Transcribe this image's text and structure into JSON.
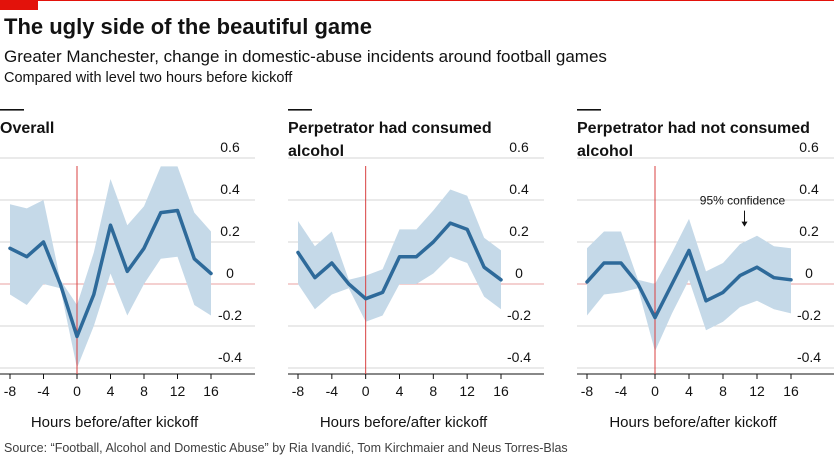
{
  "header": {
    "title": "The ugly side of the beautiful game",
    "subtitle": "Greater Manchester, change in domestic-abuse incidents around football games",
    "note": "Compared with level two hours before kickoff"
  },
  "source": "Source: “Football, Alcohol and Domestic Abuse” by Ria Ivandić, Tom Kirchmaier and Neus Torres-Blas",
  "colors": {
    "line": "#2e6a9a",
    "band": "#c5d9e8",
    "kickoff": "#d94040",
    "zero": "#e8a0a0",
    "grid": "#d6d6d6",
    "accent": "#e3120b"
  },
  "chart_data": [
    {
      "type": "line",
      "title_lines": [
        "Overall"
      ],
      "xlabel": "Hours before/after kickoff",
      "ylabel": "",
      "x": [
        -8,
        -6,
        -4,
        -2,
        0,
        2,
        4,
        6,
        8,
        10,
        12,
        14,
        16
      ],
      "xticks": [
        -8,
        -4,
        0,
        4,
        8,
        12,
        16
      ],
      "yticks": [
        -0.4,
        -0.2,
        0,
        0.2,
        0.4,
        0.6
      ],
      "ytick_labels": [
        "-0.4",
        "-0.2",
        "0",
        "0.2",
        "0.4",
        "0.6"
      ],
      "ylim": [
        -0.4,
        0.6
      ],
      "xlim": [
        -8,
        16
      ],
      "kickoff_x": 0,
      "series": [
        {
          "values": [
            0.17,
            0.13,
            0.2,
            0.0,
            -0.25,
            -0.05,
            0.28,
            0.06,
            0.17,
            0.34,
            0.35,
            0.12,
            0.05
          ],
          "lower": [
            -0.05,
            -0.1,
            0.0,
            -0.02,
            -0.4,
            -0.2,
            0.05,
            -0.15,
            0.0,
            0.12,
            0.13,
            -0.1,
            -0.15
          ],
          "upper": [
            0.38,
            0.36,
            0.4,
            0.02,
            -0.1,
            0.15,
            0.5,
            0.28,
            0.37,
            0.56,
            0.56,
            0.34,
            0.25
          ]
        }
      ]
    },
    {
      "type": "line",
      "title_lines": [
        "Perpetrator had consumed",
        "alcohol"
      ],
      "xlabel": "Hours before/after kickoff",
      "ylabel": "",
      "x": [
        -8,
        -6,
        -4,
        -2,
        0,
        2,
        4,
        6,
        8,
        10,
        12,
        14,
        16
      ],
      "xticks": [
        -8,
        -4,
        0,
        4,
        8,
        12,
        16
      ],
      "yticks": [
        -0.4,
        -0.2,
        0,
        0.2,
        0.4,
        0.6
      ],
      "ytick_labels": [
        "-0.4",
        "-0.2",
        "0",
        "0.2",
        "0.4",
        "0.6"
      ],
      "ylim": [
        -0.4,
        0.6
      ],
      "xlim": [
        -8,
        16
      ],
      "kickoff_x": 0,
      "series": [
        {
          "values": [
            0.15,
            0.03,
            0.1,
            0.0,
            -0.07,
            -0.04,
            0.13,
            0.13,
            0.2,
            0.29,
            0.26,
            0.08,
            0.02
          ],
          "lower": [
            0.0,
            -0.12,
            -0.05,
            -0.02,
            -0.18,
            -0.15,
            0.0,
            0.0,
            0.05,
            0.13,
            0.1,
            -0.06,
            -0.12
          ],
          "upper": [
            0.3,
            0.18,
            0.25,
            0.02,
            0.04,
            0.07,
            0.26,
            0.26,
            0.35,
            0.45,
            0.42,
            0.22,
            0.16
          ]
        }
      ]
    },
    {
      "type": "line",
      "title_lines": [
        "Perpetrator had not consumed",
        "alcohol"
      ],
      "xlabel": "Hours before/after kickoff",
      "ylabel": "",
      "x": [
        -8,
        -6,
        -4,
        -2,
        0,
        2,
        4,
        6,
        8,
        10,
        12,
        14,
        16
      ],
      "xticks": [
        -8,
        -4,
        0,
        4,
        8,
        12,
        16
      ],
      "yticks": [
        -0.4,
        -0.2,
        0,
        0.2,
        0.4,
        0.6
      ],
      "ytick_labels": [
        "-0.4",
        "-0.2",
        "0",
        "0.2",
        "0.4",
        "0.6"
      ],
      "ylim": [
        -0.4,
        0.6
      ],
      "xlim": [
        -8,
        16
      ],
      "kickoff_x": 0,
      "annotation": {
        "text": "95% confidence",
        "x": 11,
        "y": 0.34
      },
      "series": [
        {
          "values": [
            0.01,
            0.1,
            0.1,
            0.0,
            -0.16,
            0.0,
            0.16,
            -0.08,
            -0.04,
            0.04,
            0.08,
            0.03,
            0.02
          ],
          "lower": [
            -0.15,
            -0.05,
            -0.04,
            -0.02,
            -0.32,
            -0.14,
            0.02,
            -0.22,
            -0.18,
            -0.11,
            -0.08,
            -0.12,
            -0.14
          ],
          "upper": [
            0.17,
            0.25,
            0.25,
            0.02,
            0.0,
            0.15,
            0.31,
            0.06,
            0.1,
            0.19,
            0.23,
            0.18,
            0.17
          ]
        }
      ]
    }
  ]
}
